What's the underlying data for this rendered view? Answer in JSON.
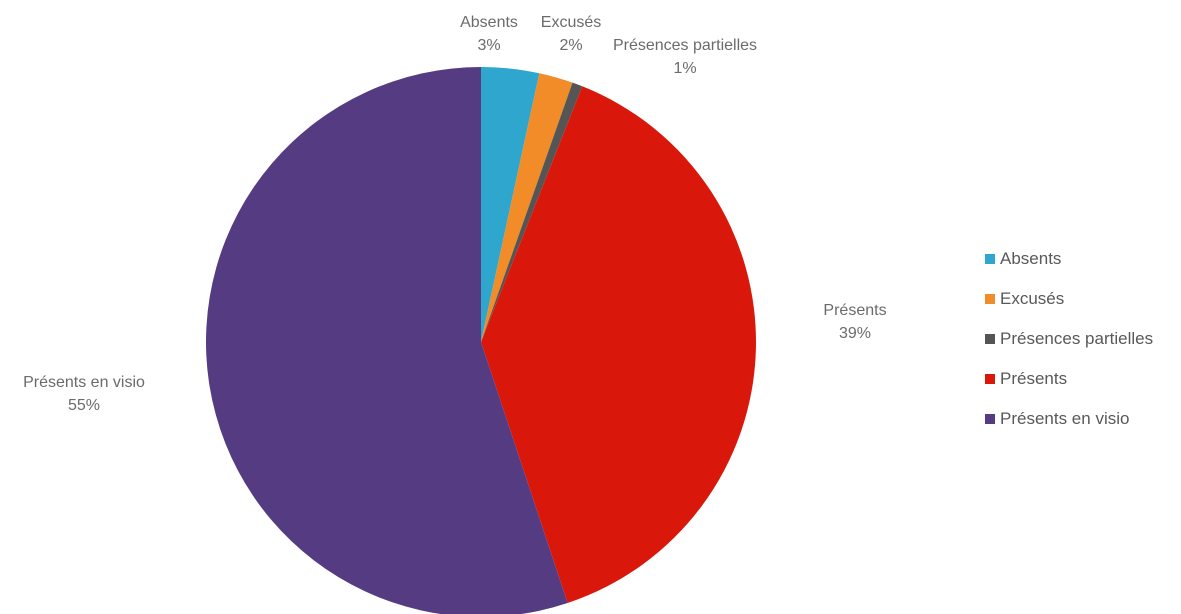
{
  "chart_data": {
    "type": "pie",
    "title": "",
    "categories": [
      "Absents",
      "Excusés",
      "Présences partielles",
      "Présents",
      "Présents en visio"
    ],
    "values": [
      3.4,
      2.0,
      0.6,
      38.9,
      55.1
    ],
    "data_labels": [
      "3%",
      "2%",
      "1%",
      "39%",
      "55%"
    ],
    "colors": [
      "#2EA6CD",
      "#F28C28",
      "#555555",
      "#D9180B",
      "#553C82"
    ],
    "start_angle_deg": 0,
    "direction": "clockwise",
    "legend": {
      "placement": "right",
      "entries": [
        "Absents",
        "Excusés",
        "Présences partielles",
        "Présents",
        "Présents en visio"
      ]
    }
  }
}
